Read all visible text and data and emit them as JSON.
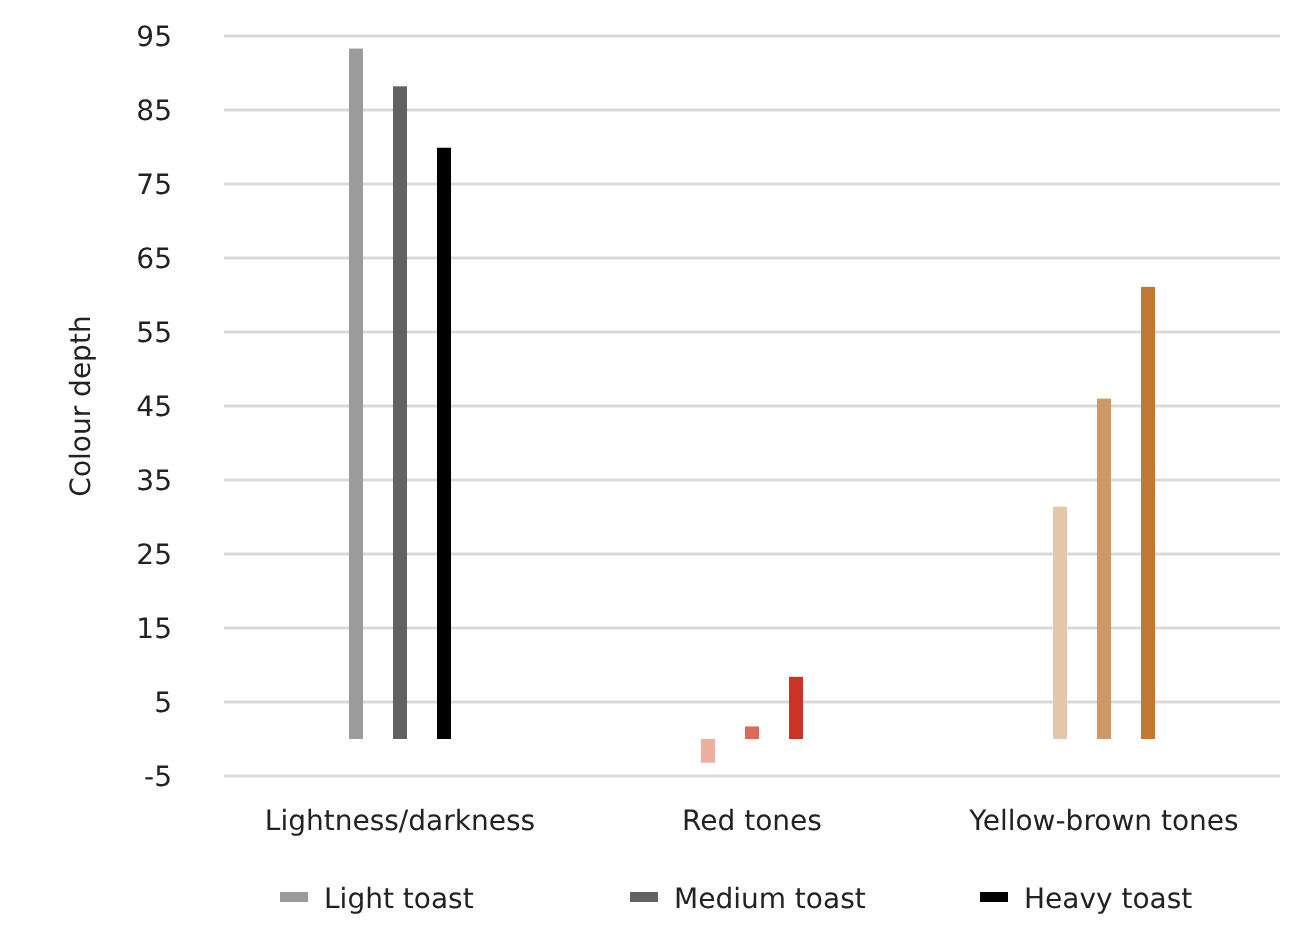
{
  "chart_data": {
    "type": "bar",
    "ylabel": "Colour depth",
    "categories": [
      "Lightness/darkness",
      "Red tones",
      "Yellow-brown tones"
    ],
    "series": [
      {
        "name": "Light toast",
        "color": "#9b9b9b",
        "colors": [
          "#9b9b9b",
          "#ebb09e",
          "#e3c9aa"
        ],
        "values": [
          93.3,
          -3.2,
          31.4
        ]
      },
      {
        "name": "Medium toast",
        "color": "#626262",
        "colors": [
          "#626262",
          "#dc6a58",
          "#cd9966"
        ],
        "values": [
          88.2,
          1.7,
          46
        ]
      },
      {
        "name": "Heavy toast",
        "color": "#000000",
        "colors": [
          "#000000",
          "#cc3228",
          "#c07832"
        ],
        "values": [
          79.9,
          8.4,
          61.1
        ]
      }
    ],
    "ylim": [
      -5,
      95
    ],
    "yticks": [
      -5,
      5,
      15,
      25,
      35,
      45,
      55,
      65,
      75,
      85,
      95
    ],
    "grid": "y",
    "legend": "bottom"
  }
}
